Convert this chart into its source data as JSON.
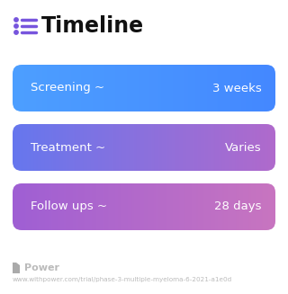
{
  "title": "Timeline",
  "title_fontsize": 17,
  "title_color": "#111111",
  "icon_color": "#7755dd",
  "background_color": "#ffffff",
  "rows": [
    {
      "label": "Screening ~",
      "value": "3 weeks",
      "color_left": "#4d9fff",
      "color_right": "#4488ff"
    },
    {
      "label": "Treatment ~",
      "value": "Varies",
      "color_left": "#6677ee",
      "color_right": "#b06acc"
    },
    {
      "label": "Follow ups ~",
      "value": "28 days",
      "color_left": "#9f5fd4",
      "color_right": "#c875c0"
    }
  ],
  "label_fontsize": 9.5,
  "value_fontsize": 9.5,
  "footer_text": "Power",
  "footer_url": "www.withpower.com/trial/phase-3-multiple-myeloma-6-2021-a1e0d",
  "footer_color": "#bbbbbb",
  "footer_fontsize": 5.2,
  "footer_logo_color": "#aaaaaa"
}
